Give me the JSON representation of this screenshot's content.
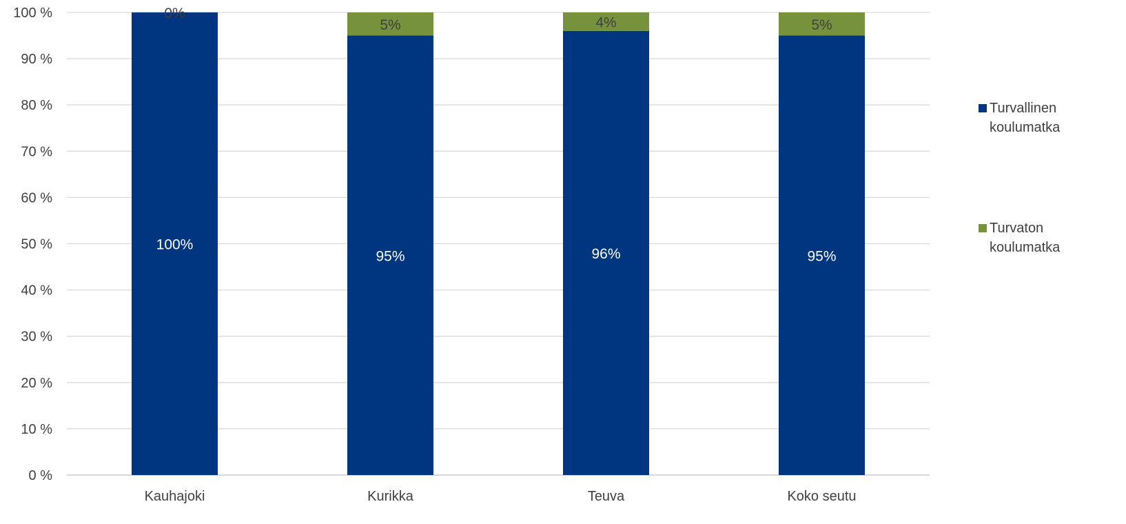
{
  "chart_data": {
    "type": "bar",
    "stacked": true,
    "categories": [
      "Kauhajoki",
      "Kurikka",
      "Teuva",
      "Koko seutu"
    ],
    "series": [
      {
        "name": "Turvallinen koulumatka",
        "color": "#003580",
        "values": [
          100,
          95,
          96,
          95
        ],
        "labels": [
          "100%",
          "95%",
          "96%",
          "95%"
        ]
      },
      {
        "name": "Turvaton koulumatka",
        "color": "#76923c",
        "values": [
          0,
          5,
          4,
          5
        ],
        "labels": [
          "0%",
          "5%",
          "4%",
          "5%"
        ]
      }
    ],
    "y_ticks": [
      "0 %",
      "10 %",
      "20 %",
      "30 %",
      "40 %",
      "50 %",
      "60 %",
      "70 %",
      "80 %",
      "90 %",
      "100 %"
    ],
    "ylim": [
      0,
      100
    ],
    "grid": true,
    "legend_position": "right"
  }
}
